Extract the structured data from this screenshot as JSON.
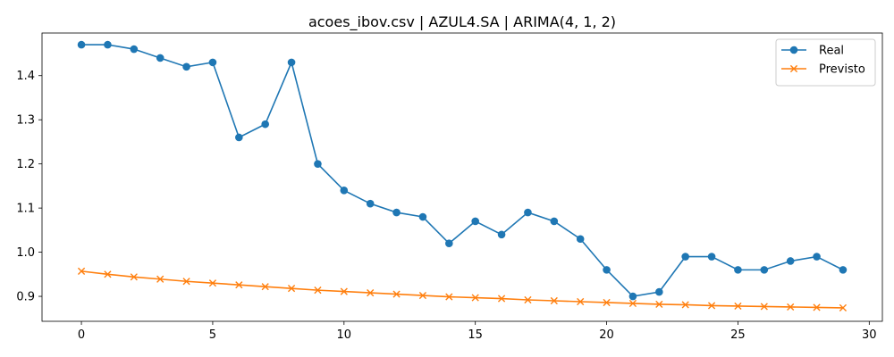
{
  "chart_data": {
    "type": "line",
    "title": "acoes_ibov.csv | AZUL4.SA | ARIMA(4, 1, 2)",
    "xlabel": "",
    "ylabel": "",
    "xlim": [
      -1.5,
      30.5
    ],
    "ylim": [
      0.8435,
      1.4965
    ],
    "xticks": [
      0,
      5,
      10,
      15,
      20,
      25,
      30
    ],
    "yticks": [
      0.9,
      1.0,
      1.1,
      1.2,
      1.3,
      1.4
    ],
    "ytick_labels": [
      "0.9",
      "1.0",
      "1.1",
      "1.2",
      "1.3",
      "1.4"
    ],
    "grid": false,
    "legend_position": "top-right",
    "x": [
      0,
      1,
      2,
      3,
      4,
      5,
      6,
      7,
      8,
      9,
      10,
      11,
      12,
      13,
      14,
      15,
      16,
      17,
      18,
      19,
      20,
      21,
      22,
      23,
      24,
      25,
      26,
      27,
      28,
      29
    ],
    "series": [
      {
        "name": "Real",
        "color": "#1f77b4",
        "marker": "circle",
        "values": [
          1.47,
          1.47,
          1.46,
          1.44,
          1.42,
          1.43,
          1.26,
          1.29,
          1.43,
          1.2,
          1.14,
          1.11,
          1.09,
          1.08,
          1.02,
          1.07,
          1.04,
          1.09,
          1.07,
          1.03,
          0.96,
          0.9,
          0.91,
          0.99,
          0.99,
          0.96,
          0.96,
          0.98,
          0.99,
          0.96
        ]
      },
      {
        "name": "Previsto",
        "color": "#ff7f0e",
        "marker": "x",
        "values": [
          0.957,
          0.95,
          0.944,
          0.939,
          0.934,
          0.93,
          0.926,
          0.922,
          0.918,
          0.914,
          0.911,
          0.908,
          0.905,
          0.902,
          0.899,
          0.897,
          0.895,
          0.892,
          0.89,
          0.888,
          0.886,
          0.884,
          0.882,
          0.881,
          0.879,
          0.878,
          0.877,
          0.876,
          0.875,
          0.874
        ]
      }
    ]
  }
}
